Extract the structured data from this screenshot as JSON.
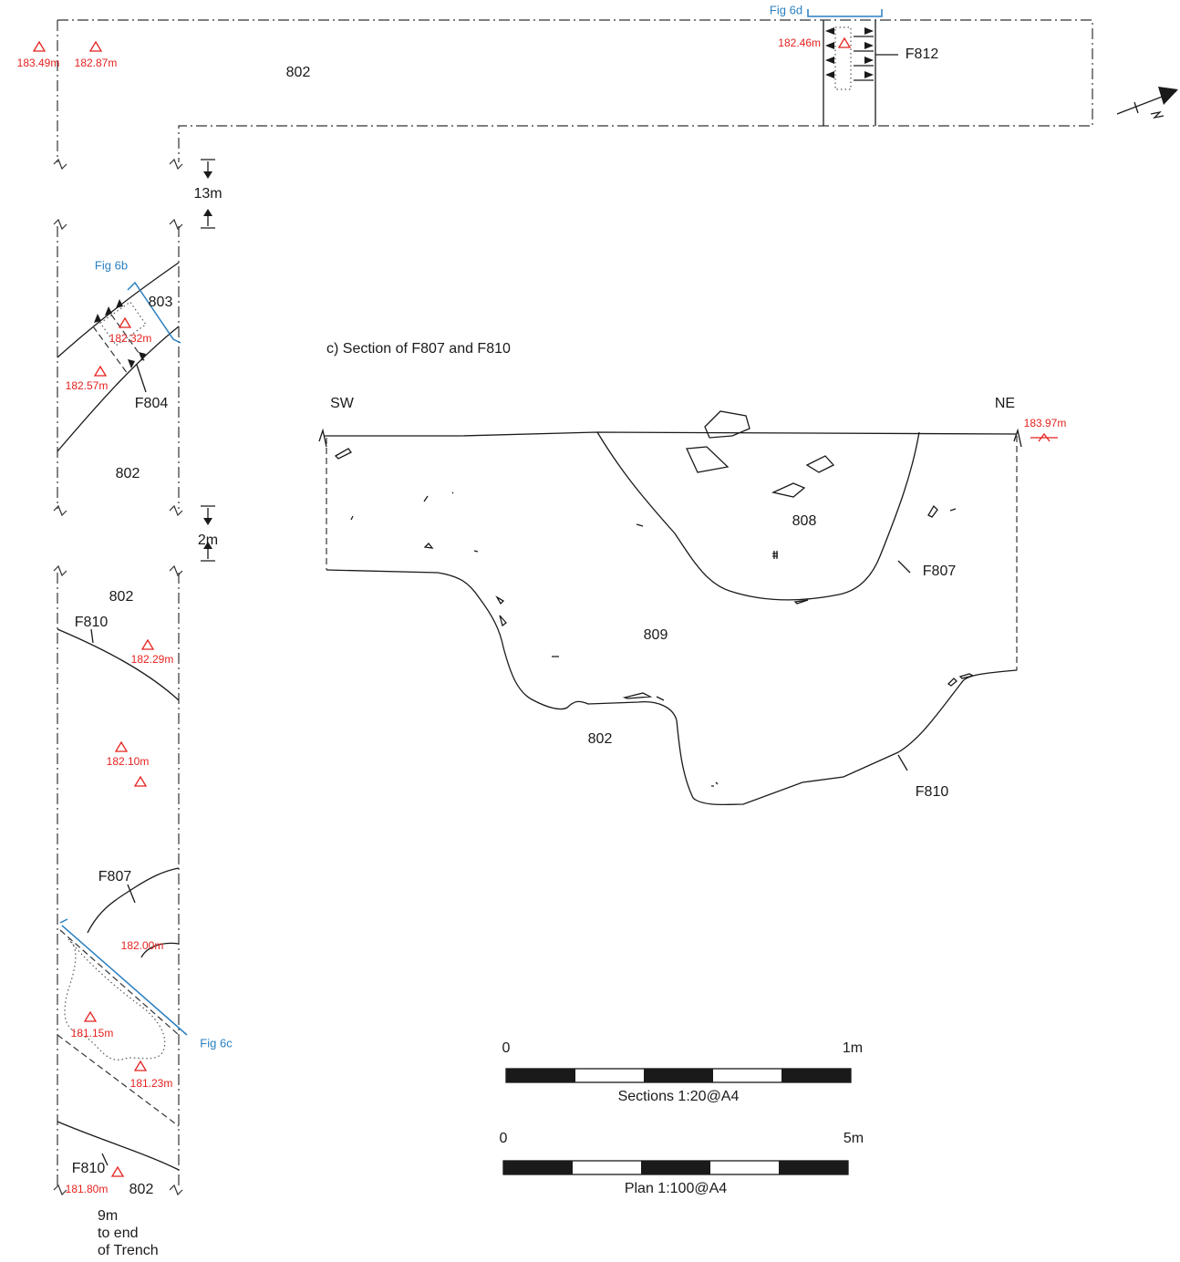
{
  "plan": {
    "fig_labels": [
      "Fig 6d",
      "Fig 6b",
      "Fig 6c"
    ],
    "levels": [
      "183.49m",
      "182.87m",
      "182.46m",
      "182.32m",
      "182.57m",
      "182.29m",
      "182.10m",
      "182.00m",
      "181.15m",
      "181.23m",
      "181.80m"
    ],
    "contexts": [
      "802",
      "803",
      "802",
      "802",
      "802"
    ],
    "features": [
      "F812",
      "F804",
      "F810",
      "F807",
      "F810"
    ],
    "distances": [
      "13m",
      "2m",
      "9m"
    ],
    "note": [
      "to end",
      "of Trench"
    ]
  },
  "section": {
    "title": "c) Section of F807 and F810",
    "orientation": [
      "SW",
      "NE"
    ],
    "level": "183.97m",
    "contexts": [
      "808",
      "809",
      "802"
    ],
    "features": [
      "F807",
      "F810"
    ]
  },
  "scale_bars": [
    {
      "start": "0",
      "end": "1m",
      "caption": "Sections 1:20@A4"
    },
    {
      "start": "0",
      "end": "5m",
      "caption": "Plan 1:100@A4"
    }
  ]
}
